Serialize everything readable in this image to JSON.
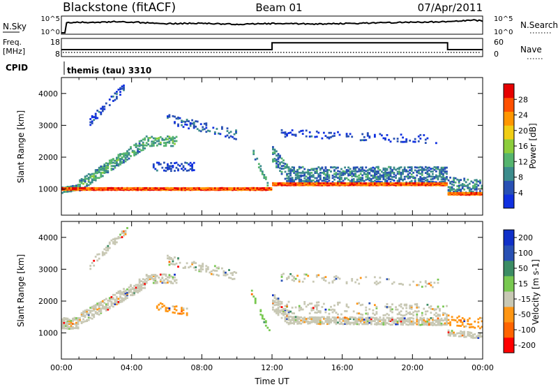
{
  "header": {
    "station": "Blackstone (fitACF)",
    "beam": "Beam 01",
    "date": "07/Apr/2011"
  },
  "colors": {
    "trace": "#000000",
    "power_scale": [
      "#1030e0",
      "#2850b4",
      "#3c8c8c",
      "#55b46e",
      "#8ccd3c",
      "#f0cd14",
      "#ff9600",
      "#ff5000",
      "#e60000"
    ],
    "velocity_scale": [
      "#ff0000",
      "#ff6400",
      "#ff9614",
      "#c8c8b4",
      "#78c850",
      "#3c8c64",
      "#2850b4",
      "#1030c8"
    ]
  },
  "chart_data": [
    {
      "type": "line",
      "name": "noise-panel",
      "labels": {
        "left": "N.Sky",
        "right": "N.Search"
      },
      "y_ticks_left": [
        "10^5",
        "10^0"
      ],
      "y_ticks_right": [
        "10^5",
        "10^0"
      ],
      "x_hours": [
        0.0,
        0.2,
        0.25,
        1,
        2,
        3,
        4,
        6,
        8,
        10,
        12,
        14,
        16,
        18,
        20,
        22,
        23.5,
        24
      ],
      "sky_level": [
        0.0,
        0.0,
        0.65,
        0.7,
        0.68,
        0.72,
        0.7,
        0.6,
        0.62,
        0.55,
        0.6,
        0.58,
        0.6,
        0.65,
        0.7,
        0.72,
        0.82,
        0.78
      ]
    },
    {
      "type": "line",
      "name": "frequency-panel",
      "labels": {
        "left_top": "Freq.",
        "left_unit": "[MHz]",
        "right": "Nave"
      },
      "y_ticks_left": [
        "18",
        "8"
      ],
      "y_ticks_right": [
        "60",
        "0"
      ],
      "freq_steps": [
        [
          0,
          11.2
        ],
        [
          12.0,
          11.2
        ],
        [
          12.0,
          15.6
        ],
        [
          22.0,
          15.6
        ],
        [
          22.0,
          11.2
        ],
        [
          24,
          11.2
        ]
      ],
      "freq_range": [
        8,
        18
      ],
      "nave_level": 8,
      "nave_range": [
        0,
        60
      ]
    },
    {
      "type": "table",
      "name": "cpid-panel",
      "label": "CPID",
      "program": "themis (tau) 3310"
    },
    {
      "type": "scatter",
      "name": "power-panel",
      "ylabel": "Slant Range [km]",
      "y_ticks": [
        1000,
        2000,
        3000,
        4000
      ],
      "ylim": [
        180,
        4500
      ],
      "colorbar": {
        "label": "Power [dB]",
        "ticks": [
          4,
          8,
          12,
          16,
          20,
          24,
          28
        ],
        "range": [
          0,
          32
        ]
      },
      "bands": [
        {
          "t0": 0.0,
          "t1": 1.0,
          "r0": 960,
          "r1": 1050,
          "v0": 0.3,
          "v1": 0.45,
          "w": 150,
          "d": 0.75
        },
        {
          "t0": 1.0,
          "t1": 4.8,
          "r0": 1100,
          "r1": 2450,
          "v0": 0.3,
          "v1": 0.4,
          "w": 320,
          "d": 0.6
        },
        {
          "t0": 4.8,
          "t1": 6.6,
          "r0": 2500,
          "r1": 2500,
          "v0": 0.35,
          "v1": 0.35,
          "w": 280,
          "d": 0.5
        },
        {
          "t0": 1.6,
          "t1": 3.6,
          "r0": 3100,
          "r1": 4200,
          "v0": 0.1,
          "v1": 0.15,
          "w": 220,
          "d": 0.4
        },
        {
          "t0": 5.2,
          "t1": 7.6,
          "r0": 1700,
          "r1": 1700,
          "v0": 0.12,
          "v1": 0.12,
          "w": 240,
          "d": 0.35
        },
        {
          "t0": 6.0,
          "t1": 10.0,
          "r0": 3200,
          "r1": 2700,
          "v0": 0.15,
          "v1": 0.2,
          "w": 260,
          "d": 0.3
        },
        {
          "t0": 10.8,
          "t1": 11.9,
          "r0": 2300,
          "r1": 1000,
          "v0": 0.3,
          "v1": 0.4,
          "w": 150,
          "d": 0.5
        },
        {
          "t0": 12.0,
          "t1": 13.0,
          "r0": 2100,
          "r1": 1400,
          "v0": 0.25,
          "v1": 0.35,
          "w": 500,
          "d": 0.5
        },
        {
          "t0": 13.0,
          "t1": 22.0,
          "r0": 1450,
          "r1": 1450,
          "v0": 0.22,
          "v1": 0.3,
          "w": 460,
          "d": 0.55
        },
        {
          "t0": 12.5,
          "t1": 21.5,
          "r0": 2750,
          "r1": 2550,
          "v0": 0.1,
          "v1": 0.1,
          "w": 220,
          "d": 0.18
        },
        {
          "t0": 22.0,
          "t1": 24.0,
          "r0": 1150,
          "r1": 1050,
          "v0": 0.25,
          "v1": 0.35,
          "w": 420,
          "d": 0.5
        }
      ],
      "underlay": [
        {
          "t0": 0.0,
          "t1": 12.0,
          "r0": 1000,
          "r1": 1000,
          "w": 80
        },
        {
          "t0": 12.0,
          "t1": 22.0,
          "r0": 1150,
          "r1": 1150,
          "w": 90
        },
        {
          "t0": 22.0,
          "t1": 24.0,
          "r0": 850,
          "r1": 850,
          "w": 80
        }
      ]
    },
    {
      "type": "scatter",
      "name": "velocity-panel",
      "ylabel": "Slant Range [km]",
      "xlabel": "Time UT",
      "x_ticks": [
        "00:00",
        "04:00",
        "08:00",
        "12:00",
        "16:00",
        "20:00",
        "00:00"
      ],
      "x_tick_hours": [
        0,
        4,
        8,
        12,
        16,
        20,
        24
      ],
      "xlim": [
        0,
        24
      ],
      "y_ticks": [
        1000,
        2000,
        3000,
        4000
      ],
      "ylim": [
        180,
        4500
      ],
      "colorbar": {
        "label": "Velocity [m s-1]",
        "ticks": [
          200,
          100,
          50,
          15,
          -15,
          -50,
          -100,
          -200
        ]
      },
      "bands": [
        {
          "t0": 0.0,
          "t1": 1.0,
          "r0": 1300,
          "r1": 1300,
          "c": 3,
          "w": 320,
          "d": 0.8
        },
        {
          "t0": 1.0,
          "t1": 4.8,
          "r0": 1400,
          "r1": 2600,
          "c": 3,
          "w": 360,
          "d": 0.6
        },
        {
          "t0": 4.8,
          "t1": 6.6,
          "r0": 2700,
          "r1": 2700,
          "c": 3,
          "w": 260,
          "d": 0.5
        },
        {
          "t0": 1.6,
          "t1": 3.8,
          "r0": 3100,
          "r1": 4300,
          "c": 3,
          "w": 220,
          "d": 0.4
        },
        {
          "t0": 5.4,
          "t1": 7.2,
          "r0": 1850,
          "r1": 1650,
          "c": 2,
          "w": 200,
          "d": 0.45
        },
        {
          "t0": 6.0,
          "t1": 10.0,
          "r0": 3300,
          "r1": 2800,
          "c": 3,
          "w": 260,
          "d": 0.3
        },
        {
          "t0": 10.8,
          "t1": 11.9,
          "r0": 2300,
          "r1": 1000,
          "c": 4,
          "w": 150,
          "d": 0.5
        },
        {
          "t0": 12.0,
          "t1": 13.0,
          "r0": 2000,
          "r1": 1500,
          "c": 3,
          "w": 500,
          "d": 0.6
        },
        {
          "t0": 13.0,
          "t1": 22.0,
          "r0": 1400,
          "r1": 1350,
          "c": 3,
          "w": 200,
          "d": 0.75
        },
        {
          "t0": 12.5,
          "t1": 22.0,
          "r0": 1800,
          "r1": 1700,
          "c": 3,
          "w": 350,
          "d": 0.2
        },
        {
          "t0": 12.5,
          "t1": 21.5,
          "r0": 2750,
          "r1": 2550,
          "c": 3,
          "w": 220,
          "d": 0.15
        },
        {
          "t0": 22.0,
          "t1": 24.0,
          "r0": 1000,
          "r1": 900,
          "c": 3,
          "w": 150,
          "d": 0.7
        },
        {
          "t0": 22.0,
          "t1": 24.0,
          "r0": 1400,
          "r1": 1300,
          "c": 2,
          "w": 300,
          "d": 0.2
        }
      ]
    }
  ]
}
